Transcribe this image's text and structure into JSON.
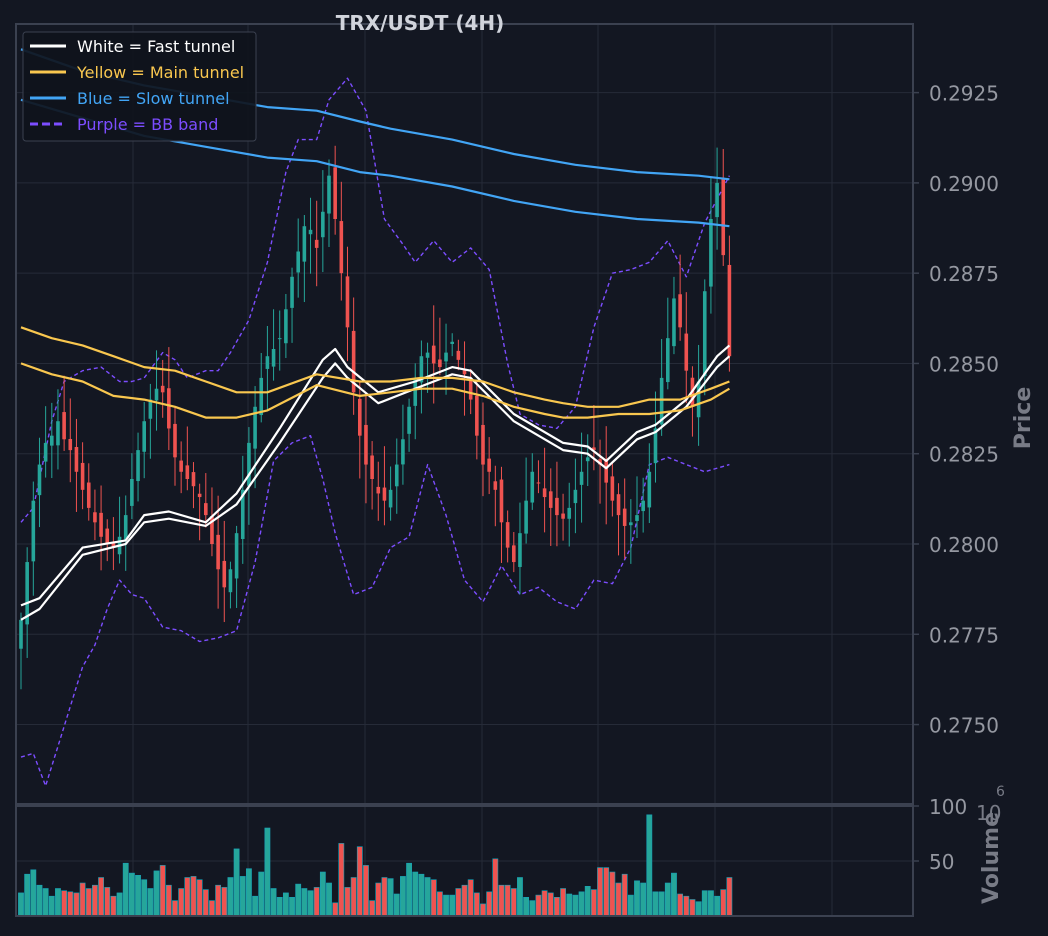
{
  "chart_data": {
    "type": "candlestick",
    "title": "TRX/USDT (4H)",
    "price_axis": {
      "label": "Price",
      "ylim": [
        0.2728,
        0.2944
      ],
      "ticks": [
        0.2925,
        0.29,
        0.2875,
        0.285,
        0.2825,
        0.28,
        0.2775,
        0.275
      ],
      "tick_labels": [
        "0.2925",
        "0.2900",
        "0.2875",
        "0.2850",
        "0.2825",
        "0.2800",
        "0.2775",
        "0.2750"
      ],
      "grid": true
    },
    "volume_axis": {
      "label": "Volume",
      "multiplier_label": "10",
      "multiplier_exp": "6",
      "ylim": [
        0,
        100
      ],
      "ticks": [
        100,
        50
      ],
      "tick_labels": [
        "100",
        "50"
      ]
    },
    "legend": {
      "placement": "top-left",
      "entries": [
        {
          "label": "White = Fast tunnel",
          "color": "#ffffff",
          "style": "solid"
        },
        {
          "label": "Yellow = Main tunnel",
          "color": "#f9c74f",
          "style": "solid"
        },
        {
          "label": "Blue = Slow tunnel",
          "color": "#42a5f5",
          "style": "solid"
        },
        {
          "label": "Purple = BB band",
          "color": "#7c4dff",
          "style": "dashed"
        }
      ]
    },
    "colors": {
      "background": "#131722",
      "grid": "#262b38",
      "frame": "#3b4150",
      "up": "#26a69a",
      "down": "#ef5350",
      "tick_label": "#9598a1",
      "axis_label": "#787b86",
      "title": "#d1d4dc"
    },
    "candle_count": 116,
    "candle_closes": [
      0.2779,
      0.2795,
      0.2812,
      0.2822,
      0.2828,
      0.283,
      0.2834,
      0.2829,
      0.2826,
      0.282,
      0.2815,
      0.281,
      0.2806,
      0.2802,
      0.28,
      0.2799,
      0.2802,
      0.2808,
      0.2818,
      0.2826,
      0.2834,
      0.284,
      0.2843,
      0.2842,
      0.2832,
      0.2824,
      0.282,
      0.2818,
      0.2816,
      0.2813,
      0.2808,
      0.28,
      0.2793,
      0.2788,
      0.2793,
      0.2803,
      0.2815,
      0.2828,
      0.2838,
      0.2846,
      0.2852,
      0.2854,
      0.2857,
      0.2865,
      0.2874,
      0.2881,
      0.2888,
      0.2887,
      0.2882,
      0.2892,
      0.2902,
      0.289,
      0.2875,
      0.286,
      0.2842,
      0.283,
      0.2822,
      0.2818,
      0.2814,
      0.2812,
      0.2815,
      0.2822,
      0.2829,
      0.2838,
      0.2846,
      0.2852,
      0.2853,
      0.285,
      0.2849,
      0.2853,
      0.2856,
      0.2851,
      0.2847,
      0.284,
      0.283,
      0.2822,
      0.282,
      0.2815,
      0.2806,
      0.2799,
      0.2795,
      0.2803,
      0.2812,
      0.282,
      0.2817,
      0.2813,
      0.281,
      0.2808,
      0.2807,
      0.281,
      0.2815,
      0.282,
      0.2824,
      0.2826,
      0.2822,
      0.2817,
      0.2812,
      0.2808,
      0.2805,
      0.2806,
      0.2808,
      0.2812,
      0.282,
      0.2832,
      0.2846,
      0.2857,
      0.2868,
      0.286,
      0.2848,
      0.2838,
      0.2845,
      0.287,
      0.289,
      0.29,
      0.288,
      0.2852
    ],
    "price_series": [
      {
        "kind": "fast-upper",
        "color": "#ffffff",
        "x": [
          0,
          3,
          10,
          17,
          20,
          24,
          30,
          35,
          42,
          49,
          51,
          53,
          58,
          64,
          70,
          73,
          80,
          88,
          92,
          95,
          100,
          103,
          108,
          113,
          115
        ],
        "y": [
          0.2783,
          0.2785,
          0.2799,
          0.2801,
          0.2808,
          0.2809,
          0.2806,
          0.2814,
          0.2832,
          0.2851,
          0.2854,
          0.2849,
          0.2842,
          0.2845,
          0.2849,
          0.2848,
          0.2836,
          0.2828,
          0.2827,
          0.2823,
          0.2831,
          0.2833,
          0.284,
          0.2852,
          0.2855
        ]
      },
      {
        "kind": "fast-lower",
        "color": "#ffffff",
        "x": [
          0,
          3,
          10,
          17,
          20,
          24,
          30,
          35,
          42,
          49,
          51,
          53,
          58,
          64,
          70,
          73,
          80,
          88,
          92,
          95,
          100,
          103,
          108,
          113,
          115
        ],
        "y": [
          0.2779,
          0.2782,
          0.2797,
          0.28,
          0.2806,
          0.2807,
          0.2805,
          0.2811,
          0.2828,
          0.2846,
          0.285,
          0.2846,
          0.2839,
          0.2843,
          0.2847,
          0.2846,
          0.2834,
          0.2826,
          0.2825,
          0.2821,
          0.2829,
          0.2831,
          0.2838,
          0.2849,
          0.2852
        ]
      },
      {
        "kind": "main-upper",
        "color": "#f9c74f",
        "x": [
          0,
          5,
          10,
          15,
          20,
          25,
          30,
          35,
          40,
          48,
          55,
          60,
          65,
          70,
          75,
          80,
          85,
          88,
          92,
          97,
          102,
          107,
          112,
          115
        ],
        "y": [
          0.286,
          0.2857,
          0.2855,
          0.2852,
          0.2849,
          0.2848,
          0.2845,
          0.2842,
          0.2842,
          0.2847,
          0.2845,
          0.2845,
          0.2846,
          0.2846,
          0.2845,
          0.2842,
          0.284,
          0.2839,
          0.2838,
          0.2838,
          0.284,
          0.284,
          0.2843,
          0.2845
        ]
      },
      {
        "kind": "main-lower",
        "color": "#f9c74f",
        "x": [
          0,
          5,
          10,
          15,
          20,
          25,
          30,
          35,
          40,
          48,
          55,
          60,
          65,
          70,
          75,
          80,
          85,
          88,
          92,
          97,
          102,
          107,
          112,
          115
        ],
        "y": [
          0.285,
          0.2847,
          0.2845,
          0.2841,
          0.284,
          0.2838,
          0.2835,
          0.2835,
          0.2837,
          0.2844,
          0.2841,
          0.2842,
          0.2843,
          0.2843,
          0.2841,
          0.2838,
          0.2836,
          0.2835,
          0.2835,
          0.2836,
          0.2836,
          0.2837,
          0.284,
          0.2843
        ]
      },
      {
        "kind": "slow-upper",
        "color": "#42a5f5",
        "x": [
          0,
          10,
          20,
          30,
          40,
          48,
          55,
          60,
          70,
          80,
          90,
          100,
          110,
          115
        ],
        "y": [
          0.2937,
          0.2931,
          0.2927,
          0.2924,
          0.2921,
          0.292,
          0.2917,
          0.2915,
          0.2912,
          0.2908,
          0.2905,
          0.2903,
          0.2902,
          0.2901
        ]
      },
      {
        "kind": "slow-lower",
        "color": "#42a5f5",
        "x": [
          0,
          10,
          20,
          30,
          40,
          48,
          55,
          60,
          70,
          80,
          90,
          100,
          110,
          115
        ],
        "y": [
          0.2923,
          0.2918,
          0.2913,
          0.291,
          0.2907,
          0.2906,
          0.2903,
          0.2902,
          0.2899,
          0.2895,
          0.2892,
          0.289,
          0.2889,
          0.2888
        ]
      },
      {
        "kind": "bb-upper",
        "color": "#7c4dff",
        "dashed": true,
        "x": [
          0,
          2,
          5,
          7,
          10,
          13,
          16,
          18,
          20,
          23,
          25,
          27,
          30,
          32,
          34,
          37,
          40,
          43,
          45,
          47,
          48,
          50,
          53,
          56,
          59,
          62,
          64,
          67,
          70,
          73,
          76,
          79,
          81,
          84,
          87,
          90,
          93,
          96,
          99,
          102,
          105,
          108,
          111,
          115
        ],
        "y": [
          0.2806,
          0.281,
          0.2834,
          0.2845,
          0.2848,
          0.2849,
          0.2845,
          0.2845,
          0.2846,
          0.2853,
          0.2851,
          0.2846,
          0.2848,
          0.2848,
          0.2853,
          0.2862,
          0.2878,
          0.2903,
          0.2912,
          0.2912,
          0.2912,
          0.2923,
          0.2929,
          0.292,
          0.289,
          0.2883,
          0.2878,
          0.2884,
          0.2878,
          0.2882,
          0.2876,
          0.285,
          0.2836,
          0.2833,
          0.2832,
          0.2838,
          0.286,
          0.2875,
          0.2876,
          0.2878,
          0.2884,
          0.2874,
          0.2889,
          0.2902
        ]
      },
      {
        "kind": "bb-lower",
        "color": "#7c4dff",
        "dashed": true,
        "x": [
          0,
          2,
          4,
          6,
          8,
          10,
          12,
          14,
          16,
          18,
          20,
          23,
          26,
          29,
          32,
          35,
          38,
          41,
          44,
          47,
          49,
          51,
          54,
          57,
          60,
          63,
          66,
          69,
          72,
          75,
          78,
          81,
          84,
          87,
          90,
          93,
          96,
          99,
          102,
          105,
          108,
          111,
          115
        ],
        "y": [
          0.2741,
          0.2742,
          0.2733,
          0.2744,
          0.2755,
          0.2766,
          0.2772,
          0.2782,
          0.279,
          0.2786,
          0.2785,
          0.2777,
          0.2776,
          0.2773,
          0.2774,
          0.2776,
          0.2795,
          0.2823,
          0.2828,
          0.283,
          0.2818,
          0.2803,
          0.2786,
          0.2788,
          0.2799,
          0.2802,
          0.2822,
          0.2808,
          0.279,
          0.2784,
          0.2794,
          0.2786,
          0.2788,
          0.2784,
          0.2782,
          0.279,
          0.2789,
          0.2799,
          0.2822,
          0.2824,
          0.2822,
          0.282,
          0.2822
        ]
      }
    ],
    "volume_values": [
      21,
      38,
      42,
      28,
      25,
      18,
      25,
      23,
      22,
      21,
      30,
      25,
      28,
      35,
      26,
      18,
      21,
      48,
      39,
      37,
      33,
      25,
      41,
      46,
      28,
      14,
      25,
      35,
      36,
      33,
      24,
      14,
      28,
      26,
      35,
      61,
      36,
      43,
      18,
      40,
      80,
      25,
      17,
      21,
      17,
      29,
      25,
      23,
      26,
      40,
      30,
      12,
      66,
      26,
      35,
      63,
      46,
      14,
      30,
      35,
      34,
      20,
      36,
      48,
      40,
      38,
      35,
      33,
      22,
      19,
      19,
      25,
      28,
      33,
      21,
      11,
      22,
      52,
      28,
      28,
      25,
      35,
      17,
      14,
      19,
      23,
      21,
      17,
      25,
      20,
      19,
      22,
      27,
      24,
      44,
      44,
      40,
      30,
      38,
      19,
      32,
      30,
      92,
      22,
      22,
      30,
      39,
      20,
      18,
      15,
      13,
      23,
      23,
      18,
      24,
      35
    ]
  }
}
